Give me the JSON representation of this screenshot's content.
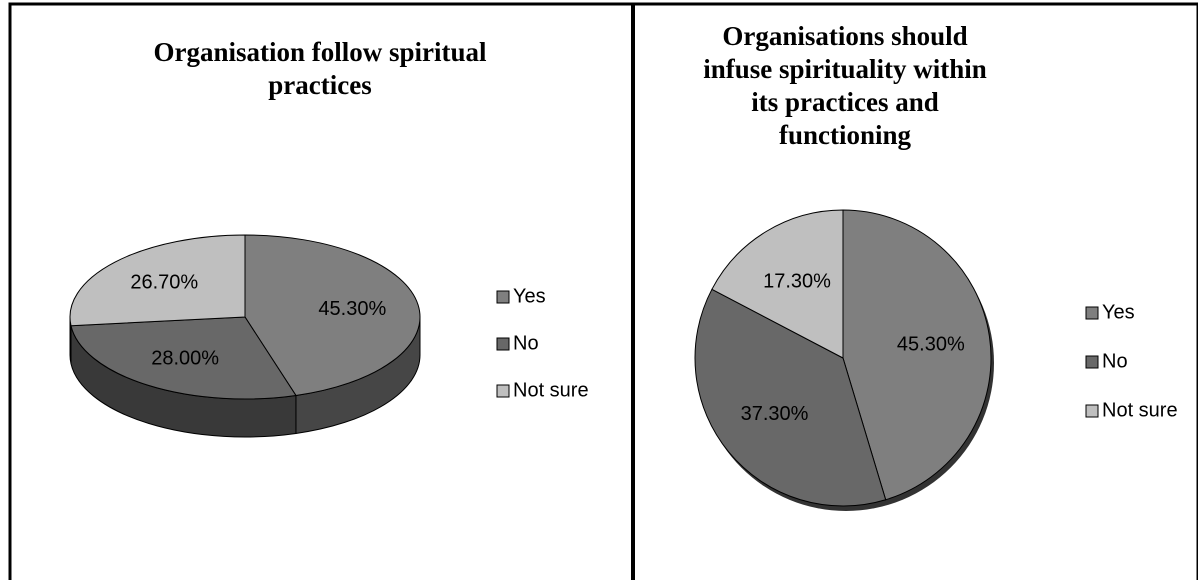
{
  "chart_data": [
    {
      "type": "pie3d",
      "title": "Organisation follow spiritual practices",
      "categories": [
        "Yes",
        "No",
        "Not sure"
      ],
      "values": [
        45.3,
        28,
        26.7
      ],
      "value_labels": [
        "45.30%",
        "28.00%",
        "26.70%"
      ],
      "colors": [
        "#7f7f7f",
        "#686868",
        "#bfbfbf"
      ],
      "legend": "right"
    },
    {
      "type": "pie",
      "title": "Organisations should infuse spirituality within its practices and functioning",
      "categories": [
        "Yes",
        "No",
        "Not sure"
      ],
      "values": [
        45.3,
        37.3,
        17.3
      ],
      "value_labels": [
        "45.30%",
        "37.30%",
        "17.30%"
      ],
      "colors": [
        "#7f7f7f",
        "#686868",
        "#bfbfbf"
      ],
      "legend": "right"
    }
  ]
}
